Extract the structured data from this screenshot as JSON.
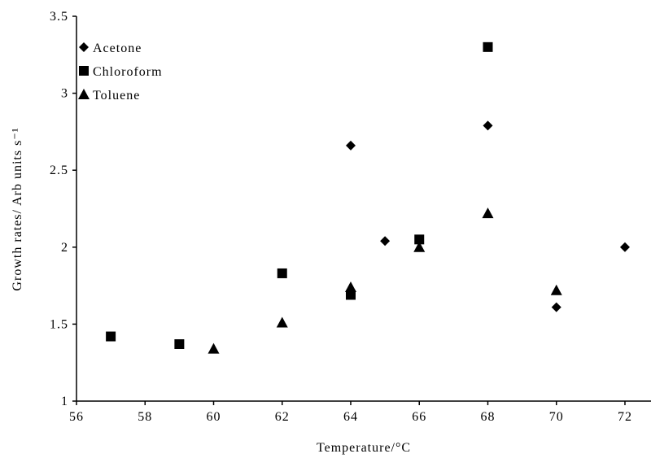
{
  "chart_data": {
    "type": "scatter",
    "x_label": "Temperature/°C",
    "y_label": "Growth rates/ Arb units s⁻¹",
    "xlim": [
      56,
      72.76
    ],
    "xticks": [
      56,
      58,
      60,
      62,
      64,
      66,
      68,
      70,
      72
    ],
    "ylim": [
      1,
      3.5
    ],
    "yticks": [
      1,
      1.5,
      2,
      2.5,
      3,
      3.5
    ],
    "legend": "upper-left",
    "series": [
      {
        "name": "Acetone",
        "marker": "diamond",
        "color": "#000000",
        "x": [
          64,
          65,
          68,
          70,
          72
        ],
        "values": [
          2.66,
          2.04,
          2.79,
          1.61,
          2.0
        ]
      },
      {
        "name": "Chloroform",
        "marker": "square",
        "color": "#000000",
        "x": [
          57,
          59,
          62,
          64,
          66,
          68
        ],
        "values": [
          1.42,
          1.37,
          1.83,
          1.69,
          2.05,
          3.3
        ]
      },
      {
        "name": "Toluene",
        "marker": "triangle",
        "color": "#000000",
        "x": [
          60,
          62,
          64,
          66,
          68,
          70
        ],
        "values": [
          1.34,
          1.51,
          1.74,
          2.0,
          2.22,
          1.72
        ]
      }
    ]
  }
}
